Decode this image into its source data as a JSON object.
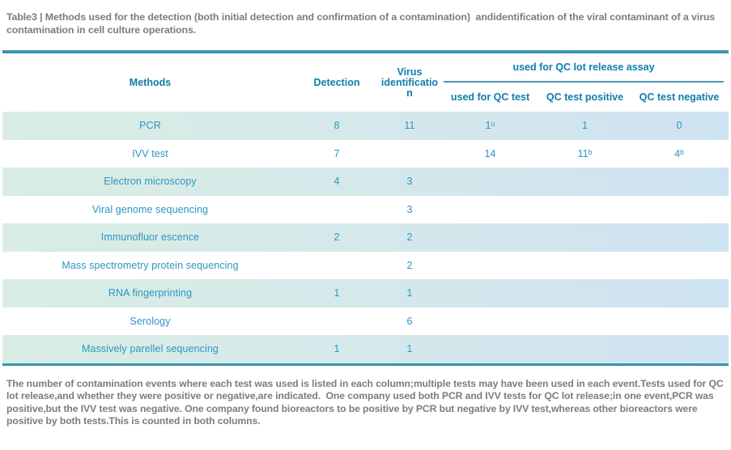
{
  "page": {
    "title": "Table3 | Methods used for the detection (both initial detection and confirmation of a contamination)  andidentification of the viral contaminant of a virus contamination in cell culture operations.",
    "footnote": "The number of contamination events where each test was used is listed in each column;multiple tests may have been used in each event.Tests used for QC lot release,and whether they were positive or negative,are indicated.  One company used both PCR and IVV tests for QC lot release;in one event,PCR was positive,but the IVV test was negative. One company found bioreactors to be positive by PCR but negative by IVV test,whereas other bioreactors were positive by both tests.This is counted in both columns."
  },
  "table": {
    "headers": {
      "methods": "Methods",
      "detection": "Detection",
      "virus_identification": "Virus\nidentificatio\nn",
      "qc_span": "used for QC lot release assay",
      "qc_sub": [
        "used for QC test",
        "QC test positive",
        "QC test negative"
      ]
    },
    "rows": [
      {
        "cells": [
          "PCR",
          "8",
          "11",
          "1ᵘ",
          "1",
          "0"
        ]
      },
      {
        "cells": [
          "IVV test",
          "7",
          "",
          "14",
          "11ᵇ",
          "4ᵇ"
        ]
      },
      {
        "cells": [
          "Electron microscopy",
          "4",
          "3",
          "",
          "",
          ""
        ]
      },
      {
        "cells": [
          "Viral genome sequencing",
          "",
          "3",
          "",
          "",
          ""
        ]
      },
      {
        "cells": [
          "Immunofluor escence",
          "2",
          "2",
          "",
          "",
          ""
        ]
      },
      {
        "cells": [
          "Mass spectrometry protein sequencing",
          "",
          "2",
          "",
          "",
          ""
        ]
      },
      {
        "cells": [
          "RNA fingerprinting",
          "1",
          "1",
          "",
          "",
          ""
        ]
      },
      {
        "cells": [
          "Serology",
          "",
          "6",
          "",
          "",
          ""
        ]
      },
      {
        "cells": [
          "Massively parellel sequencing",
          "1",
          "1",
          "",
          "",
          ""
        ]
      }
    ]
  },
  "colors": {
    "header_text": "#0e7dad",
    "cell_text": "#2d95c3",
    "row_shade_left": "#d9ede4",
    "row_shade_right": "#cee3f1",
    "table_border": "#3a93b5",
    "note_text": "#7c7c7c"
  }
}
